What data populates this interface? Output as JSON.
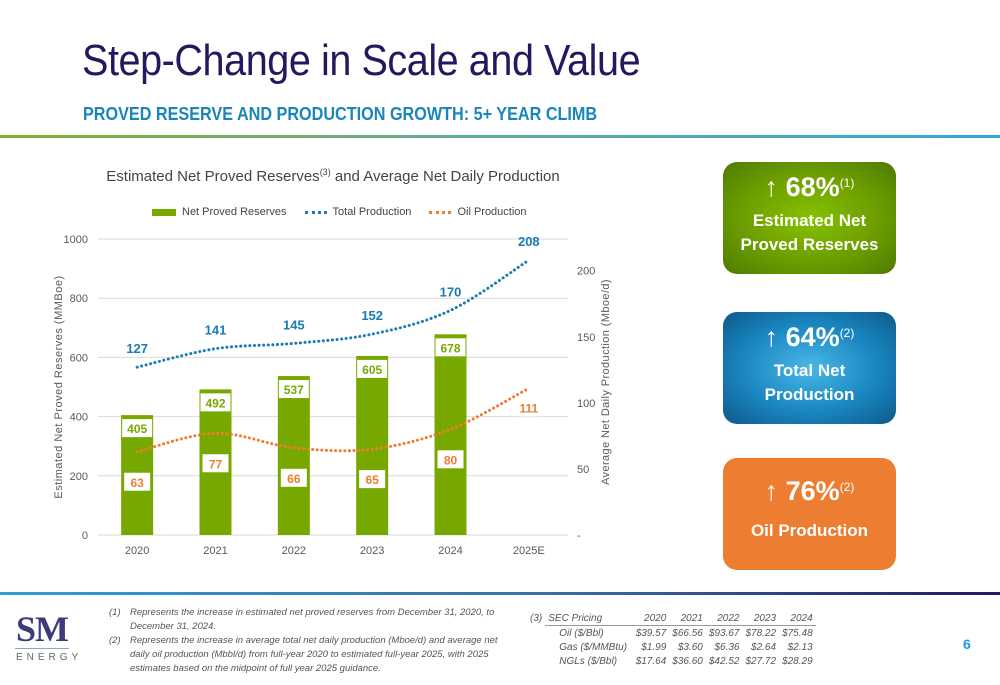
{
  "header": {
    "title": "Step-Change in Scale and Value",
    "subtitle": "PROVED RESERVE AND PRODUCTION GROWTH: 5+ YEAR CLIMB"
  },
  "colors": {
    "reserves_bar": "#77a800",
    "total_production": "#1a7cb3",
    "oil_production": "#ed7d31",
    "title_navy": "#221a5e",
    "subtitle_blue": "#1a86b8"
  },
  "chart_data": {
    "type": "bar",
    "title_main": "Estimated Net Proved Reserves",
    "title_sup": "(3)",
    "title_rest": " and Average Net Daily Production",
    "categories": [
      "2020",
      "2021",
      "2022",
      "2023",
      "2024",
      "2025E"
    ],
    "series": [
      {
        "name": "Net Proved Reserves",
        "type": "bar",
        "axis": "left",
        "values": [
          405,
          492,
          537,
          605,
          678,
          null
        ]
      },
      {
        "name": "Total Production",
        "type": "line",
        "style": "dotted",
        "axis": "right",
        "values": [
          127,
          141,
          145,
          152,
          170,
          208
        ]
      },
      {
        "name": "Oil Production",
        "type": "line",
        "style": "dotted",
        "axis": "right",
        "values": [
          63,
          77,
          66,
          65,
          80,
          111
        ]
      }
    ],
    "ylabel": "Estimated Net Proved Reserves (MMBoe)",
    "y2label": "Average Net Daily Production (Mboe/d)",
    "ylim": [
      0,
      1000
    ],
    "yticks": [
      "0",
      "200",
      "400",
      "600",
      "800",
      "1000"
    ],
    "y2lim": [
      0,
      224
    ],
    "y2ticks": [
      "-",
      "50",
      "100",
      "150",
      "200"
    ],
    "grid": true,
    "legend": "top"
  },
  "cards": [
    {
      "percent": "68%",
      "note": "(1)",
      "label_line1": "Estimated Net",
      "label_line2": "Proved Reserves",
      "arrow": "↑"
    },
    {
      "percent": "64%",
      "note": "(2)",
      "label_line1": "Total Net",
      "label_line2": "Production",
      "arrow": "↑"
    },
    {
      "percent": "76%",
      "note": "(2)",
      "label_line1": "Oil Production",
      "label_line2": "",
      "arrow": "↑"
    }
  ],
  "footnotes": [
    {
      "num": "(1)",
      "text": "Represents the increase in estimated net proved reserves from December 31, 2020, to December 31, 2024."
    },
    {
      "num": "(2)",
      "text": "Represents the increase in average total net daily production (Mboe/d) and average net daily oil production (Mbbl/d) from full-year 2020 to estimated full-year 2025, with 2025 estimates based on the midpoint of full year 2025 guidance."
    }
  ],
  "sec_pricing": {
    "num": "(3)",
    "header": "SEC Pricing",
    "years": [
      "2020",
      "2021",
      "2022",
      "2023",
      "2024"
    ],
    "rows": [
      {
        "label": "Oil ($/Bbl)",
        "values": [
          "$39.57",
          "$66.56",
          "$93.67",
          "$78.22",
          "$75.48"
        ]
      },
      {
        "label": "Gas ($/MMBtu)",
        "values": [
          "$1.99",
          "$3.60",
          "$6.36",
          "$2.64",
          "$2.13"
        ]
      },
      {
        "label": "NGLs ($/Bbl)",
        "values": [
          "$17.64",
          "$36.60",
          "$42.52",
          "$27.72",
          "$28.29"
        ]
      }
    ]
  },
  "logo": {
    "mark": "SM",
    "word": "ENERGY"
  },
  "page_number": "6"
}
